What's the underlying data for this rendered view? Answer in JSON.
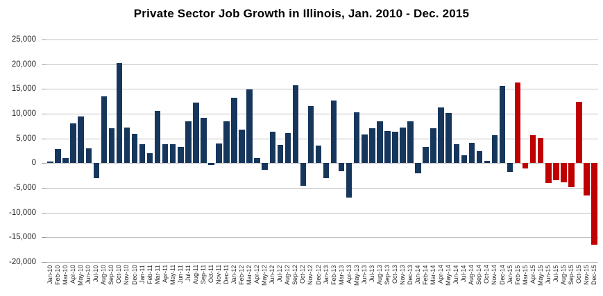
{
  "chart_data": {
    "type": "bar",
    "title": "Private Sector Job Growth in Illinois, Jan. 2010 - Dec. 2015",
    "xlabel": "",
    "ylabel": "",
    "ylim": [
      -20000,
      25000
    ],
    "grid": true,
    "legend": "none",
    "categories": [
      "Jan-10",
      "Feb-10",
      "Mar-10",
      "Apr-10",
      "May-10",
      "Jun-10",
      "Jul-10",
      "Aug-10",
      "Sep-10",
      "Oct-10",
      "Nov-10",
      "Dec-10",
      "Jan-11",
      "Feb-11",
      "Mar-11",
      "Apr-11",
      "May-11",
      "Jun-11",
      "Jul-11",
      "Aug-11",
      "Sep-11",
      "Oct-11",
      "Nov-11",
      "Dec-11",
      "Jan-12",
      "Feb-12",
      "Mar-12",
      "Apr-12",
      "May-12",
      "Jun-12",
      "Jul-12",
      "Aug-12",
      "Sep-12",
      "Oct-12",
      "Nov-12",
      "Dec-12",
      "Jan-13",
      "Feb-13",
      "Mar-13",
      "Apr-13",
      "May-13",
      "Jun-13",
      "Jul-13",
      "Aug-13",
      "Sep-13",
      "Oct-13",
      "Nov-13",
      "Dec-13",
      "Jan-14",
      "Feb-14",
      "Mar-14",
      "Apr-14",
      "May-14",
      "Jun-14",
      "Jul-14",
      "Aug-14",
      "Sep-14",
      "Oct-14",
      "Nov-14",
      "Dec-14",
      "Jan-15",
      "Feb-15",
      "Mar-15",
      "Apr-15",
      "May-15",
      "Jun-15",
      "Jul-15",
      "Aug-15",
      "Sep-15",
      "Oct-15",
      "Nov-15",
      "Dec-15"
    ],
    "values": [
      400,
      2900,
      1100,
      8100,
      9400,
      3000,
      -3000,
      13500,
      7100,
      20200,
      7200,
      6000,
      3800,
      2000,
      10600,
      3900,
      3800,
      3300,
      8400,
      12200,
      9200,
      -400,
      4000,
      8400,
      13200,
      6800,
      14900,
      1000,
      -1400,
      6400,
      3700,
      6100,
      15700,
      -4600,
      11500,
      3600,
      -3000,
      12700,
      -1700,
      -7000,
      10300,
      5800,
      7100,
      8400,
      6500,
      6400,
      7200,
      8500,
      -2000,
      3300,
      7000,
      11300,
      10100,
      3800,
      1600,
      4100,
      2500,
      500,
      5600,
      15600,
      -1800,
      16300,
      -1100,
      5700,
      5100,
      -4000,
      -3500,
      -3900,
      -4900,
      12400,
      -6500,
      -16500
    ],
    "ytick_values": [
      25000,
      20000,
      15000,
      10000,
      5000,
      0,
      -5000,
      -10000,
      -15000,
      -20000
    ],
    "ytick_labels": [
      "25,000",
      "20,000",
      "15,000",
      "10,000",
      "5,000",
      "0",
      "-5,000",
      "-10,000",
      "-15,000",
      "-20,000"
    ],
    "bar_color": "#16365c",
    "highlight_color": "#c00000",
    "highlight_start_category": "Feb-15",
    "gridline_color": "#bfbfbf"
  }
}
